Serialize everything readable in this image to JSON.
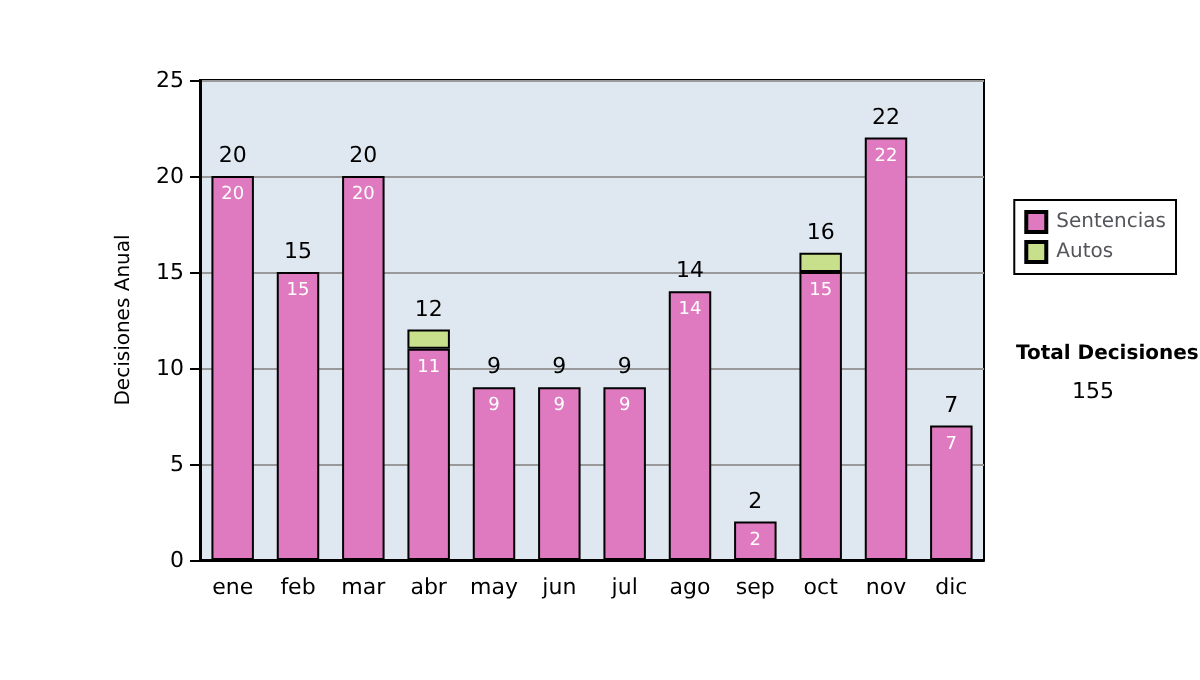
{
  "chart_data": {
    "type": "bar",
    "stacked": true,
    "categories": [
      "ene",
      "feb",
      "mar",
      "abr",
      "may",
      "jun",
      "jul",
      "ago",
      "sep",
      "oct",
      "nov",
      "dic"
    ],
    "series": [
      {
        "name": "Sentencias",
        "color": "#e07ac0",
        "values": [
          20,
          15,
          20,
          11,
          9,
          9,
          9,
          14,
          2,
          15,
          22,
          7
        ],
        "value_labels": [
          "20",
          "15",
          "20",
          "11",
          "9",
          "9",
          "9",
          "14",
          "2",
          "15",
          "22",
          "7"
        ]
      },
      {
        "name": "Autos",
        "color": "#c8e08c",
        "values": [
          0,
          0,
          0,
          1,
          0,
          0,
          0,
          0,
          0,
          1,
          0,
          0
        ]
      }
    ],
    "totals": [
      "20",
      "15",
      "20",
      "12",
      "9",
      "9",
      "9",
      "14",
      "2",
      "16",
      "22",
      "7"
    ],
    "ylabel": "Decisiones Anual",
    "ylim": [
      0,
      25
    ],
    "yticks": [
      0,
      5,
      10,
      15,
      20,
      25
    ],
    "grid": "y",
    "legend": "right",
    "annotations": [
      "Total Decisiones",
      "155"
    ]
  }
}
